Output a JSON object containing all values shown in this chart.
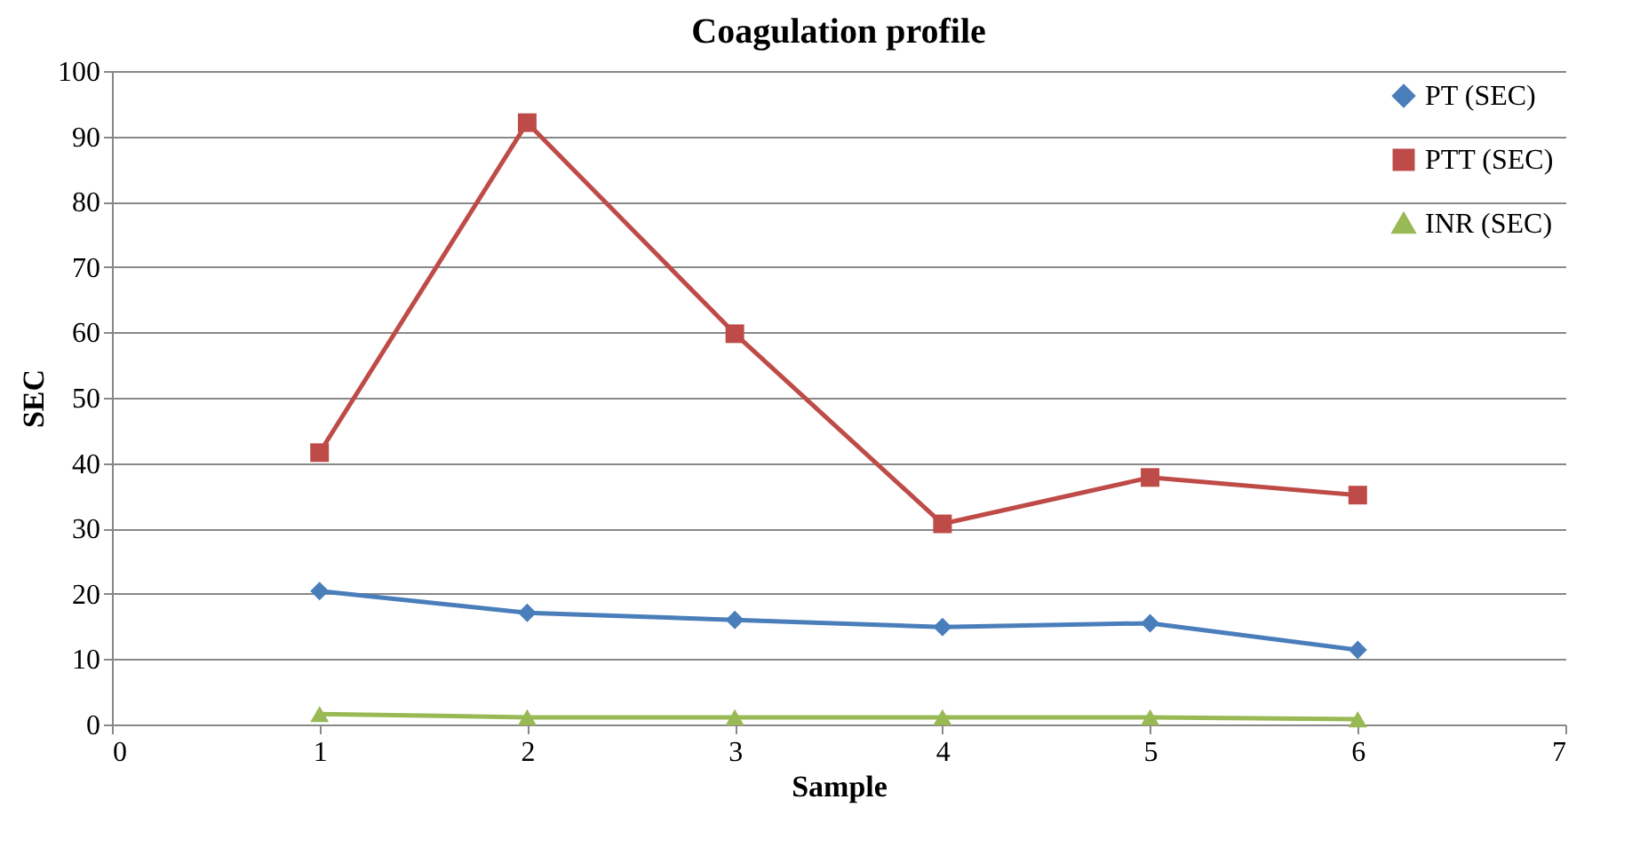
{
  "chart_data": {
    "type": "line",
    "title": "Coagulation profile",
    "xlabel": "Sample",
    "ylabel": "SEC",
    "x": [
      1,
      2,
      3,
      4,
      5,
      6
    ],
    "series": [
      {
        "name": "PT (SEC)",
        "color": "#4a7ebb",
        "marker": "diamond",
        "values": [
          20.4,
          17.1,
          16.0,
          14.9,
          15.5,
          11.4
        ]
      },
      {
        "name": "PTT (SEC)",
        "color": "#be4b48",
        "marker": "square",
        "values": [
          41.6,
          92.1,
          59.8,
          30.7,
          37.8,
          35.1
        ]
      },
      {
        "name": "INR (SEC)",
        "color": "#98b954",
        "marker": "triangle",
        "values": [
          1.6,
          1.1,
          1.1,
          1.1,
          1.1,
          0.8
        ]
      }
    ],
    "xlim": [
      0,
      7
    ],
    "xticks": [
      0,
      1,
      2,
      3,
      4,
      5,
      6,
      7
    ],
    "ylim": [
      0,
      100
    ],
    "yticks": [
      0,
      10,
      20,
      30,
      40,
      50,
      60,
      70,
      80,
      90,
      100
    ],
    "grid": "y",
    "legend": "top right",
    "line_style": "solid"
  }
}
